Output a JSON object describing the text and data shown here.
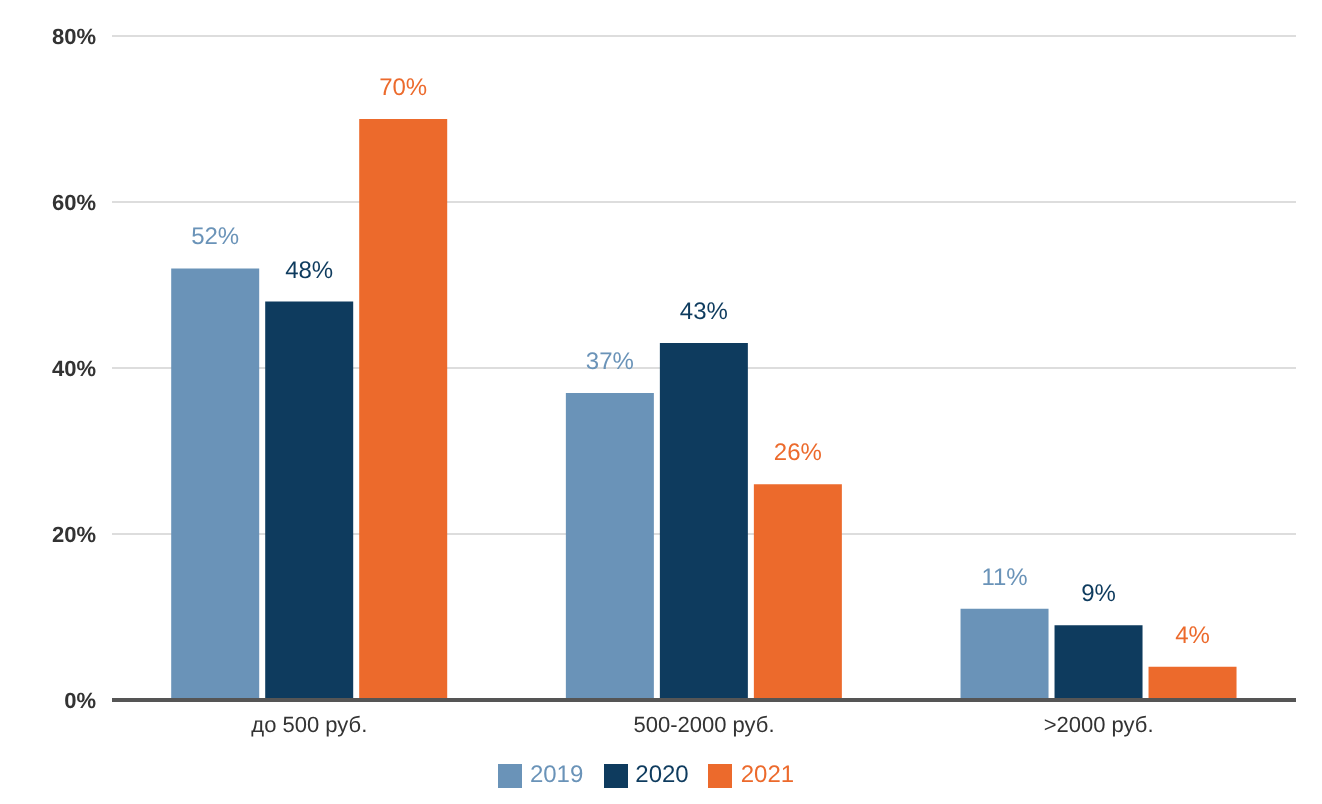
{
  "chart_data": {
    "type": "bar",
    "categories": [
      "до 500 руб.",
      "500-2000 руб.",
      ">2000 руб."
    ],
    "series": [
      {
        "name": "2019",
        "color": "#6a93b8",
        "values": [
          52,
          37,
          11
        ],
        "value_labels": [
          "52%",
          "37%",
          "11%"
        ]
      },
      {
        "name": "2020",
        "color": "#0e3b5e",
        "values": [
          48,
          43,
          9
        ],
        "value_labels": [
          "48%",
          "43%",
          "9%"
        ]
      },
      {
        "name": "2021",
        "color": "#ec6a2c",
        "values": [
          70,
          26,
          4
        ],
        "value_labels": [
          "70%",
          "26%",
          "4%"
        ]
      }
    ],
    "ylim": [
      0,
      80
    ],
    "yticks": [
      {
        "value": 0,
        "label": "0%"
      },
      {
        "value": 20,
        "label": "20%"
      },
      {
        "value": 40,
        "label": "40%"
      },
      {
        "value": 60,
        "label": "60%"
      },
      {
        "value": 80,
        "label": "80%"
      }
    ],
    "grid": "y",
    "legend": "bottom"
  }
}
